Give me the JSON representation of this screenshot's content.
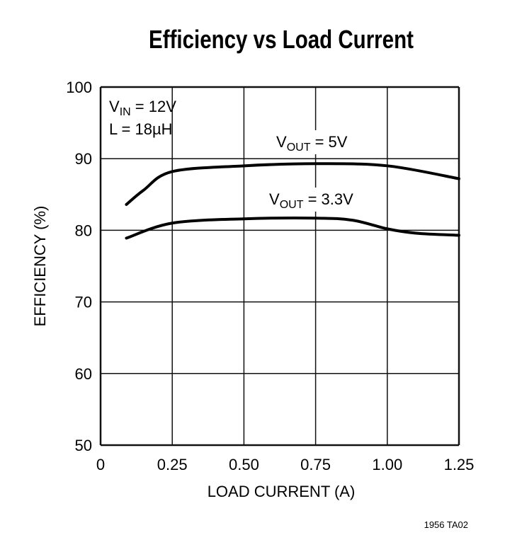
{
  "chart_data": {
    "type": "line",
    "title": "Efficiency vs Load Current",
    "xlabel": "LOAD CURRENT (A)",
    "ylabel": "EFFICIENCY (%)",
    "xlim": [
      0,
      1.25
    ],
    "ylim": [
      50,
      100
    ],
    "xticks": [
      "0",
      "0.25",
      "0.50",
      "0.75",
      "1.00",
      "1.25"
    ],
    "yticks": [
      "50",
      "60",
      "70",
      "80",
      "90",
      "100"
    ],
    "grid": true,
    "conditions": {
      "vin_main": "V",
      "vin_sub": "IN",
      "vin_rest": " = 12V",
      "inductor": "L = 18µH"
    },
    "series": [
      {
        "label_main": "V",
        "label_sub": "OUT",
        "label_rest": " = 5V",
        "x": [
          0.09,
          0.15,
          0.25,
          0.5,
          0.75,
          1.0,
          1.25
        ],
        "y": [
          83.6,
          85.6,
          88.2,
          89.0,
          89.3,
          89.0,
          87.2
        ]
      },
      {
        "label_main": "V",
        "label_sub": "OUT",
        "label_rest": " = 3.3V",
        "x": [
          0.09,
          0.25,
          0.5,
          0.75,
          0.88,
          1.0,
          1.1,
          1.25
        ],
        "y": [
          78.9,
          81.0,
          81.6,
          81.7,
          81.4,
          80.2,
          79.6,
          79.3
        ]
      }
    ],
    "footnote": "1956 TA02"
  }
}
